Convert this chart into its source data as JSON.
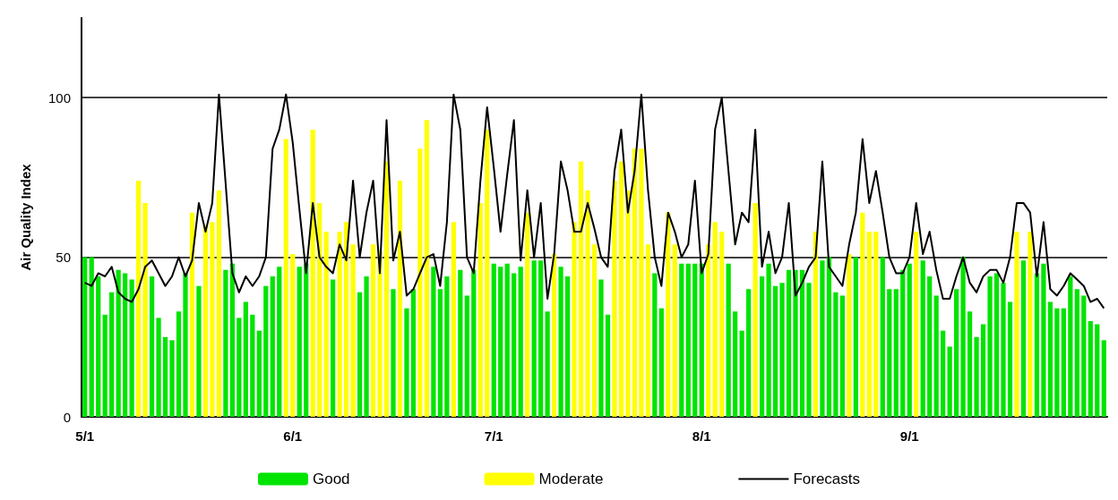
{
  "chart_data": {
    "type": "bar",
    "ylabel": "Air Quality Index",
    "categories": [
      "5/1",
      null,
      null,
      null,
      null,
      null,
      null,
      null,
      null,
      null,
      null,
      null,
      null,
      null,
      null,
      null,
      null,
      null,
      null,
      null,
      null,
      null,
      null,
      null,
      null,
      null,
      null,
      null,
      null,
      null,
      null,
      "6/1",
      null,
      null,
      null,
      null,
      null,
      null,
      null,
      null,
      null,
      null,
      null,
      null,
      null,
      null,
      null,
      null,
      null,
      null,
      null,
      null,
      null,
      null,
      null,
      null,
      null,
      null,
      null,
      null,
      null,
      "7/1",
      null,
      null,
      null,
      null,
      null,
      null,
      null,
      null,
      null,
      null,
      null,
      null,
      null,
      null,
      null,
      null,
      null,
      null,
      null,
      null,
      null,
      null,
      null,
      null,
      null,
      null,
      null,
      null,
      null,
      null,
      "8/1",
      null,
      null,
      null,
      null,
      null,
      null,
      null,
      null,
      null,
      null,
      null,
      null,
      null,
      null,
      null,
      null,
      null,
      null,
      null,
      null,
      null,
      null,
      null,
      null,
      null,
      null,
      null,
      null,
      null,
      null,
      "9/1",
      null,
      null,
      null,
      null,
      null,
      null,
      null,
      null,
      null,
      null,
      null,
      null,
      null,
      null,
      null,
      null,
      null,
      null,
      null,
      null,
      null,
      null,
      null,
      null,
      null,
      null,
      null,
      null,
      null
    ],
    "series": [
      {
        "name": "Good",
        "color": "#00e400",
        "values": [
          50,
          50,
          44,
          32,
          39,
          46,
          45,
          43,
          null,
          null,
          44,
          31,
          25,
          24,
          33,
          45,
          null,
          41,
          null,
          null,
          null,
          46,
          48,
          31,
          36,
          32,
          27,
          41,
          44,
          47,
          null,
          null,
          47,
          48,
          null,
          null,
          null,
          43,
          null,
          null,
          null,
          39,
          44,
          null,
          null,
          null,
          40,
          null,
          34,
          40,
          null,
          null,
          47,
          40,
          44,
          null,
          46,
          38,
          46,
          null,
          null,
          48,
          47,
          48,
          45,
          47,
          null,
          49,
          49,
          33,
          null,
          47,
          44,
          null,
          null,
          null,
          null,
          43,
          32,
          null,
          null,
          null,
          null,
          null,
          null,
          45,
          34,
          null,
          null,
          48,
          48,
          48,
          48,
          null,
          null,
          null,
          48,
          33,
          27,
          40,
          null,
          44,
          48,
          41,
          42,
          46,
          46,
          46,
          42,
          null,
          49,
          50,
          39,
          38,
          null,
          50,
          null,
          null,
          null,
          50,
          40,
          40,
          46,
          48,
          null,
          49,
          44,
          38,
          27,
          22,
          40,
          50,
          33,
          25,
          29,
          44,
          45,
          42,
          36,
          null,
          49,
          null,
          45,
          48,
          36,
          34,
          34,
          44,
          40,
          38,
          30,
          29,
          24
        ]
      },
      {
        "name": "Moderate",
        "color": "#ffff00",
        "values": [
          null,
          null,
          null,
          null,
          null,
          null,
          null,
          null,
          74,
          67,
          null,
          null,
          null,
          null,
          null,
          null,
          64,
          null,
          60,
          61,
          71,
          null,
          null,
          null,
          null,
          null,
          null,
          null,
          null,
          null,
          87,
          51,
          null,
          null,
          90,
          67,
          58,
          null,
          58,
          61,
          54,
          null,
          null,
          54,
          52,
          80,
          null,
          74,
          null,
          null,
          84,
          93,
          null,
          null,
          null,
          61,
          null,
          null,
          null,
          67,
          90,
          null,
          null,
          null,
          null,
          null,
          64,
          null,
          null,
          null,
          51,
          null,
          null,
          61,
          80,
          71,
          54,
          null,
          null,
          74,
          80,
          71,
          84,
          84,
          54,
          null,
          null,
          64,
          54,
          null,
          null,
          null,
          null,
          54,
          61,
          58,
          null,
          null,
          null,
          null,
          67,
          null,
          null,
          null,
          null,
          null,
          null,
          null,
          null,
          58,
          null,
          null,
          null,
          null,
          51,
          null,
          64,
          58,
          58,
          null,
          null,
          null,
          null,
          null,
          58,
          null,
          null,
          null,
          null,
          null,
          null,
          null,
          null,
          null,
          null,
          null,
          null,
          null,
          null,
          58,
          null,
          58,
          null,
          null,
          null,
          null,
          null,
          null,
          null,
          null,
          null,
          null,
          null
        ]
      },
      {
        "name": "Forecasts",
        "type": "line",
        "color": "#000000",
        "values": [
          42,
          41,
          45,
          44,
          47,
          39,
          37,
          36,
          40,
          47,
          49,
          45,
          41,
          44,
          50,
          44,
          49,
          67,
          58,
          67,
          101,
          73,
          45,
          39,
          44,
          41,
          44,
          50,
          84,
          90,
          101,
          86,
          65,
          45,
          67,
          50,
          47,
          45,
          54,
          49,
          74,
          50,
          64,
          74,
          45,
          93,
          49,
          58,
          38,
          40,
          45,
          50,
          51,
          41,
          61,
          101,
          90,
          50,
          45,
          74,
          97,
          78,
          58,
          76,
          93,
          49,
          71,
          50,
          67,
          37,
          51,
          80,
          71,
          58,
          58,
          67,
          59,
          50,
          47,
          77,
          90,
          64,
          77,
          101,
          71,
          50,
          41,
          64,
          58,
          50,
          54,
          74,
          45,
          51,
          90,
          100,
          77,
          54,
          64,
          61,
          90,
          47,
          58,
          45,
          50,
          67,
          38,
          42,
          47,
          50,
          80,
          47,
          44,
          41,
          54,
          64,
          87,
          67,
          77,
          64,
          50,
          45,
          45,
          50,
          67,
          51,
          58,
          46,
          37,
          37,
          44,
          50,
          42,
          39,
          44,
          46,
          46,
          42,
          50,
          67,
          67,
          64,
          44,
          61,
          40,
          38,
          41,
          45,
          43,
          41,
          36,
          37,
          34
        ]
      }
    ],
    "ylim": [
      0,
      125
    ],
    "yticks": [
      0,
      50,
      100
    ],
    "grid": "y",
    "legend": "bottom"
  }
}
